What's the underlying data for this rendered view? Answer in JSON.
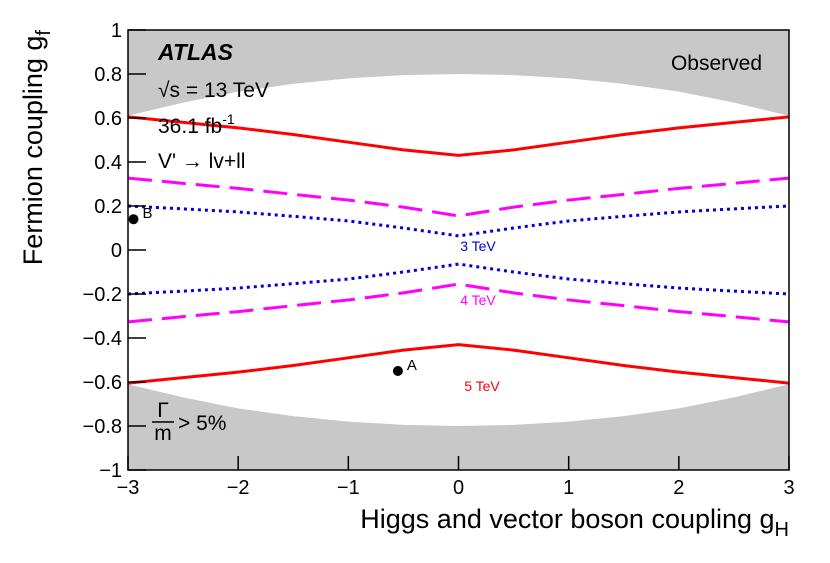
{
  "chart_data": {
    "type": "line",
    "xlabel": "Higgs and vector boson coupling g",
    "xlabel_sub": "H",
    "ylabel": "Fermion coupling g",
    "ylabel_sub": "f",
    "xlim": [
      -3,
      3
    ],
    "ylim": [
      -1,
      1
    ],
    "xticks": [
      {
        "value": -3,
        "label": "−3"
      },
      {
        "value": -2,
        "label": "−2"
      },
      {
        "value": -1,
        "label": "−1"
      },
      0,
      1,
      2,
      3
    ],
    "yticks": [
      {
        "value": -1,
        "label": "−1"
      },
      {
        "value": -0.8,
        "label": "−0.8"
      },
      {
        "value": -0.6,
        "label": "−0.6"
      },
      {
        "value": -0.4,
        "label": "−0.4"
      },
      {
        "value": -0.2,
        "label": "−0.2"
      },
      0,
      0.2,
      0.4,
      0.6,
      0.8,
      1
    ],
    "annotations": {
      "experiment": "ATLAS",
      "energy": "√s = 13 TeV",
      "lumi": "36.1 fb",
      "lumi_sup": "-1",
      "process": "V' → lv+ll",
      "observed": "Observed"
    },
    "width_label": {
      "numerator": "Γ",
      "denominator": "m",
      "text": "> 5%"
    },
    "excluded_region": {
      "color": "#c8c8c8",
      "x": [
        -3,
        -2.5,
        -2,
        -1.5,
        -1,
        -0.5,
        0,
        0.5,
        1,
        1.5,
        2,
        2.5,
        3
      ],
      "upper": [
        0.61,
        0.67,
        0.72,
        0.755,
        0.78,
        0.795,
        0.8,
        0.795,
        0.78,
        0.755,
        0.72,
        0.67,
        0.61
      ],
      "lower": [
        -0.61,
        -0.67,
        -0.72,
        -0.755,
        -0.78,
        -0.795,
        -0.8,
        -0.795,
        -0.78,
        -0.755,
        -0.72,
        -0.67,
        -0.61
      ]
    },
    "x": [
      -3,
      -2.5,
      -2,
      -1.5,
      -1,
      -0.5,
      0,
      0.5,
      1,
      1.5,
      2,
      2.5,
      3
    ],
    "series": [
      {
        "name": "5 TeV",
        "color": "#ff0000",
        "dash": "solid",
        "upper": [
          0.605,
          0.58,
          0.555,
          0.525,
          0.49,
          0.455,
          0.43,
          0.455,
          0.49,
          0.525,
          0.555,
          0.58,
          0.605
        ],
        "lower": [
          -0.605,
          -0.58,
          -0.555,
          -0.525,
          -0.49,
          -0.455,
          -0.43,
          -0.455,
          -0.49,
          -0.525,
          -0.555,
          -0.58,
          -0.605
        ]
      },
      {
        "name": "4 TeV",
        "color": "#ff00ff",
        "dash": "dashed",
        "upper": [
          0.327,
          0.303,
          0.28,
          0.253,
          0.227,
          0.195,
          0.155,
          0.195,
          0.227,
          0.253,
          0.28,
          0.303,
          0.327
        ],
        "lower": [
          -0.327,
          -0.303,
          -0.28,
          -0.253,
          -0.227,
          -0.195,
          -0.155,
          -0.195,
          -0.227,
          -0.253,
          -0.28,
          -0.303,
          -0.327
        ]
      },
      {
        "name": "3 TeV",
        "color": "#0000dd",
        "dash": "dotted",
        "upper": [
          0.2,
          0.187,
          0.173,
          0.153,
          0.132,
          0.1,
          0.064,
          0.1,
          0.132,
          0.153,
          0.173,
          0.187,
          0.2
        ],
        "lower": [
          -0.2,
          -0.187,
          -0.173,
          -0.153,
          -0.132,
          -0.1,
          -0.064,
          -0.1,
          -0.132,
          -0.153,
          -0.173,
          -0.187,
          -0.2
        ]
      }
    ],
    "points": [
      {
        "label": "A",
        "x": -0.55,
        "y": -0.55
      },
      {
        "label": "B",
        "x": -2.95,
        "y": 0.14
      }
    ]
  }
}
